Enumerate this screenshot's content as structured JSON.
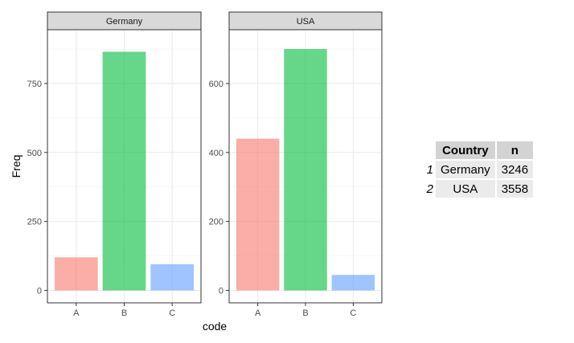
{
  "chart_data": {
    "type": "bar",
    "facet_var": "Country",
    "xlabel": "code",
    "ylabel": "Freq",
    "grid": true,
    "colors": {
      "A": "#F8766D",
      "B": "#00BA38",
      "C": "#619CFF"
    },
    "panels": [
      {
        "strip": "Germany",
        "categories": [
          "A",
          "B",
          "C"
        ],
        "values": [
          120,
          865,
          95
        ],
        "ylim": [
          0,
          900
        ],
        "yticks": [
          0,
          250,
          500,
          750
        ]
      },
      {
        "strip": "USA",
        "categories": [
          "A",
          "B",
          "C"
        ],
        "values": [
          440,
          700,
          45
        ],
        "ylim": [
          0,
          720
        ],
        "yticks": [
          0,
          200,
          400,
          600
        ]
      }
    ]
  },
  "table": {
    "headers": [
      "Country",
      "n"
    ],
    "rows": [
      {
        "rowname": "1",
        "country": "Germany",
        "n": "3246"
      },
      {
        "rowname": "2",
        "country": "USA",
        "n": "3558"
      }
    ]
  }
}
